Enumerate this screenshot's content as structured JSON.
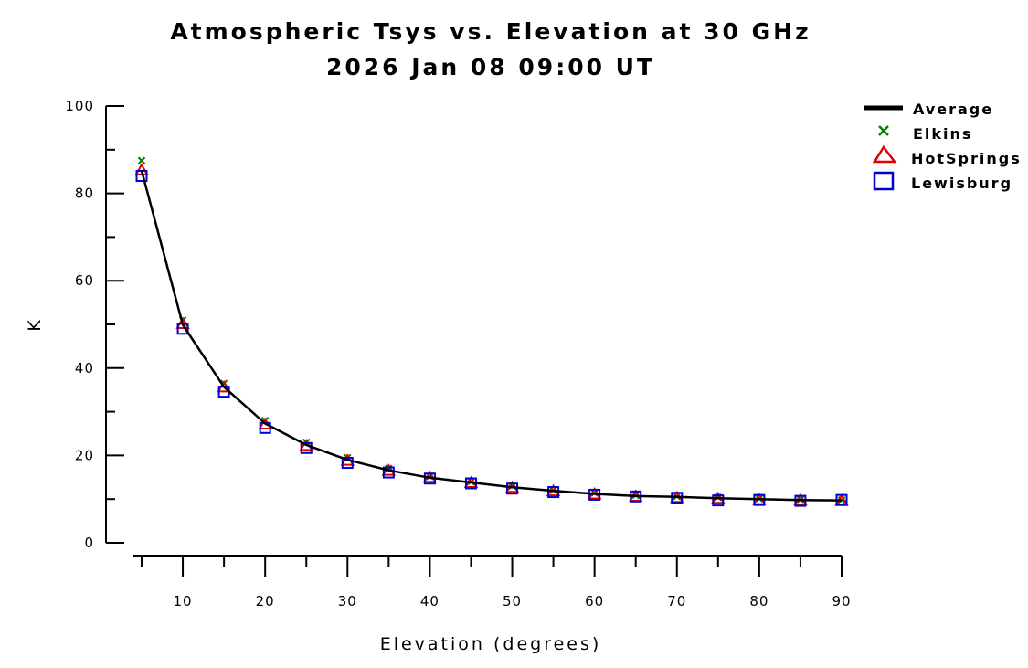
{
  "chart_data": {
    "type": "line",
    "title": "Atmospheric Tsys vs. Elevation at 30 GHz",
    "subtitle": "2026 Jan 08 09:00 UT",
    "xlabel": "Elevation (degrees)",
    "ylabel": "K",
    "xlim": [
      3,
      92
    ],
    "ylim": [
      0,
      100
    ],
    "x_ticks": [
      10,
      20,
      30,
      40,
      50,
      60,
      70,
      80,
      90
    ],
    "y_ticks": [
      0,
      20,
      40,
      60,
      80,
      100
    ],
    "x_minor_ticks": [
      5,
      15,
      25,
      35,
      45,
      55,
      65,
      75,
      85
    ],
    "y_minor_ticks": [
      10,
      30,
      50,
      70,
      90
    ],
    "grid": false,
    "legend_position": "top-right",
    "x": [
      5,
      10,
      15,
      20,
      25,
      30,
      35,
      40,
      45,
      50,
      55,
      60,
      65,
      70,
      75,
      80,
      85,
      90
    ],
    "series": [
      {
        "name": "Average",
        "style": "line",
        "color": "#000000",
        "values": [
          85.2,
          49.9,
          35.7,
          27.3,
          22.4,
          19.0,
          16.6,
          14.9,
          13.8,
          12.7,
          11.9,
          11.2,
          10.7,
          10.5,
          10.2,
          10.0,
          9.8,
          9.7
        ]
      },
      {
        "name": "Elkins",
        "style": "x",
        "color": "#008000",
        "values": [
          87.5,
          51.0,
          36.5,
          28.0,
          23.0,
          19.5,
          17.0,
          15.2,
          14.0,
          13.0,
          12.0,
          11.4,
          10.9,
          10.6,
          10.4,
          10.1,
          9.9,
          9.8
        ]
      },
      {
        "name": "HotSprings",
        "style": "triangle",
        "color": "#e00000",
        "values": [
          85.3,
          50.1,
          35.6,
          27.1,
          22.2,
          18.8,
          16.5,
          14.9,
          13.7,
          12.6,
          11.8,
          11.1,
          10.6,
          10.3,
          10.1,
          9.8,
          9.7,
          9.6
        ]
      },
      {
        "name": "Lewisburg",
        "style": "square",
        "color": "#0000d0",
        "values": [
          84.0,
          49.0,
          34.6,
          26.3,
          21.7,
          18.3,
          16.1,
          14.7,
          13.6,
          12.4,
          11.6,
          11.0,
          10.6,
          10.3,
          9.7,
          9.8,
          9.6,
          9.8
        ]
      }
    ]
  }
}
